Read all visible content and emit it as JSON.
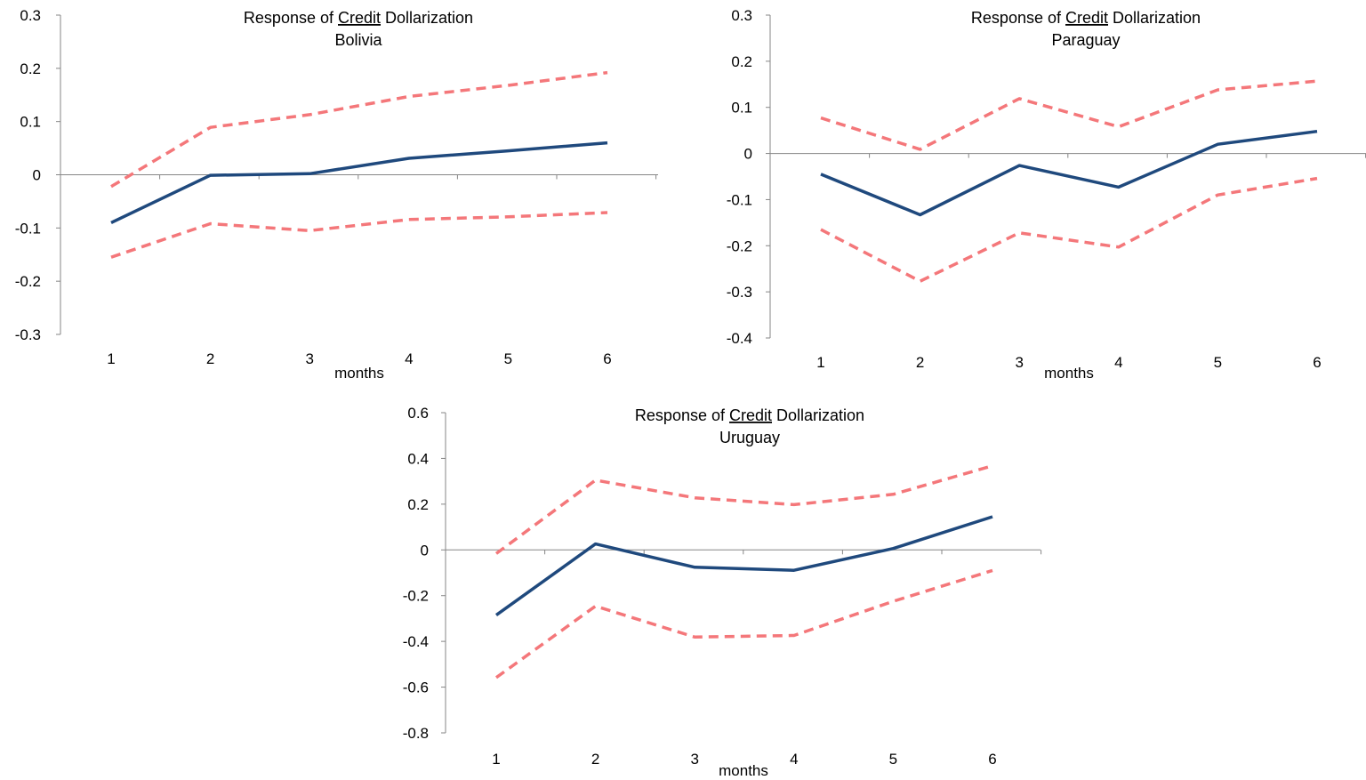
{
  "chart_data": [
    {
      "type": "line",
      "title_prefix": "Response of ",
      "title_emphasis": "Credit",
      "title_suffix": " Dollarization",
      "subtitle": "Bolivia",
      "xlabel": "months",
      "ylabel": "",
      "categories": [
        "1",
        "2",
        "3",
        "4",
        "5",
        "6"
      ],
      "ylim": [
        -0.3,
        0.3
      ],
      "yticks": [
        -0.3,
        -0.2,
        -0.1,
        0,
        0.1,
        0.2,
        0.3
      ],
      "ytick_labels": [
        "-0.3",
        "-0.2",
        "-0.1",
        "0",
        "0.1",
        "0.2",
        "0.3"
      ],
      "series": [
        {
          "role": "response",
          "style": "solid",
          "color": "#1F497D",
          "values": [
            -0.09,
            -0.001,
            0.002,
            0.031,
            0.045,
            0.06
          ]
        },
        {
          "role": "upper",
          "style": "dashed",
          "color": "#F4777A",
          "values": [
            -0.022,
            0.089,
            0.113,
            0.147,
            0.168,
            0.192
          ]
        },
        {
          "role": "lower",
          "style": "dashed",
          "color": "#F4777A",
          "values": [
            -0.155,
            -0.092,
            -0.105,
            -0.084,
            -0.079,
            -0.071
          ]
        }
      ]
    },
    {
      "type": "line",
      "title_prefix": "Response of ",
      "title_emphasis": "Credit",
      "title_suffix": " Dollarization",
      "subtitle": "Paraguay",
      "xlabel": "months",
      "ylabel": "",
      "categories": [
        "1",
        "2",
        "3",
        "4",
        "5",
        "6"
      ],
      "ylim": [
        -0.4,
        0.3
      ],
      "yticks": [
        -0.4,
        -0.3,
        -0.2,
        -0.1,
        0,
        0.1,
        0.2,
        0.3
      ],
      "ytick_labels": [
        "-0.4",
        "-0.3",
        "-0.2",
        "-0.1",
        "0",
        "0.1",
        "0.2",
        "0.3"
      ],
      "series": [
        {
          "role": "response",
          "style": "solid",
          "color": "#1F497D",
          "values": [
            -0.045,
            -0.133,
            -0.026,
            -0.073,
            0.02,
            0.048
          ]
        },
        {
          "role": "upper",
          "style": "dashed",
          "color": "#F4777A",
          "values": [
            0.077,
            0.009,
            0.119,
            0.058,
            0.138,
            0.157
          ]
        },
        {
          "role": "lower",
          "style": "dashed",
          "color": "#F4777A",
          "values": [
            -0.165,
            -0.277,
            -0.172,
            -0.203,
            -0.09,
            -0.054
          ]
        }
      ]
    },
    {
      "type": "line",
      "title_prefix": "Response of ",
      "title_emphasis": "Credit",
      "title_suffix": " Dollarization",
      "subtitle": "Uruguay",
      "xlabel": "months",
      "ylabel": "",
      "categories": [
        "1",
        "2",
        "3",
        "4",
        "5",
        "6"
      ],
      "ylim": [
        -0.8,
        0.6
      ],
      "yticks": [
        -0.8,
        -0.6,
        -0.4,
        -0.2,
        0,
        0.2,
        0.4,
        0.6
      ],
      "ytick_labels": [
        "-0.8",
        "-0.6",
        "-0.4",
        "-0.2",
        "0",
        "0.2",
        "0.4",
        "0.6"
      ],
      "series": [
        {
          "role": "response",
          "style": "solid",
          "color": "#1F497D",
          "values": [
            -0.285,
            0.026,
            -0.076,
            -0.089,
            0.006,
            0.145
          ]
        },
        {
          "role": "upper",
          "style": "dashed",
          "color": "#F4777A",
          "values": [
            -0.016,
            0.305,
            0.228,
            0.198,
            0.243,
            0.368
          ]
        },
        {
          "role": "lower",
          "style": "dashed",
          "color": "#F4777A",
          "values": [
            -0.558,
            -0.246,
            -0.381,
            -0.374,
            -0.225,
            -0.09
          ]
        }
      ]
    }
  ]
}
